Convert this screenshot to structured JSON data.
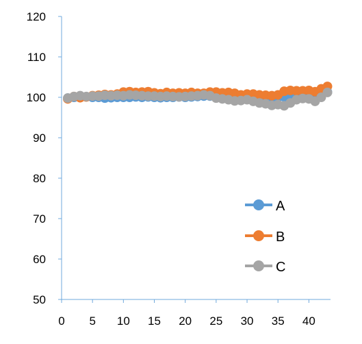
{
  "chart_data": {
    "type": "line",
    "title": "",
    "xlabel": "",
    "ylabel": "",
    "xlim": [
      0,
      43.5
    ],
    "ylim": [
      50,
      120
    ],
    "x_ticks": [
      0,
      5,
      10,
      15,
      20,
      25,
      30,
      35,
      40
    ],
    "y_ticks": [
      50,
      60,
      70,
      80,
      90,
      100,
      110,
      120
    ],
    "legend_position": "right",
    "x": [
      1,
      2,
      3,
      4,
      5,
      6,
      7,
      8,
      9,
      10,
      11,
      12,
      13,
      14,
      15,
      16,
      17,
      18,
      19,
      20,
      21,
      22,
      23,
      24,
      25,
      26,
      27,
      28,
      29,
      30,
      31,
      32,
      33,
      34,
      35,
      36,
      37,
      38,
      39,
      40,
      41,
      42,
      43
    ],
    "series": [
      {
        "name": "A",
        "color": "#5B9BD5",
        "values": [
          99.8,
          100.0,
          100.0,
          100.1,
          100.0,
          100.0,
          99.8,
          99.9,
          100.0,
          100.0,
          100.0,
          100.1,
          100.0,
          100.1,
          100.0,
          99.9,
          100.0,
          100.0,
          100.1,
          100.0,
          100.1,
          100.2,
          100.3,
          100.3,
          100.0,
          100.1,
          100.2,
          100.0,
          99.9,
          100.0,
          99.8,
          99.7,
          99.9,
          100.0,
          100.0,
          100.1,
          100.3,
          100.1,
          100.0,
          100.2,
          100.4,
          101.0,
          101.3
        ]
      },
      {
        "name": "B",
        "color": "#ED7D31",
        "values": [
          99.6,
          100.2,
          99.9,
          100.1,
          100.4,
          100.5,
          100.7,
          100.6,
          100.8,
          101.3,
          101.4,
          101.2,
          101.3,
          101.4,
          101.1,
          100.9,
          101.2,
          101.0,
          101.1,
          101.0,
          101.2,
          101.0,
          101.0,
          101.3,
          101.3,
          101.1,
          101.2,
          101.0,
          100.6,
          100.8,
          100.8,
          100.6,
          100.5,
          100.4,
          100.6,
          101.5,
          101.7,
          101.6,
          101.6,
          101.7,
          101.4,
          102.1,
          102.7
        ]
      },
      {
        "name": "C",
        "color": "#A5A5A5",
        "values": [
          99.8,
          100.2,
          100.4,
          100.2,
          100.3,
          100.3,
          100.5,
          100.4,
          100.5,
          100.4,
          100.6,
          100.5,
          100.4,
          100.3,
          100.3,
          100.2,
          100.3,
          100.2,
          100.1,
          100.2,
          100.3,
          100.4,
          100.6,
          100.4,
          99.8,
          99.6,
          99.4,
          99.1,
          99.2,
          99.4,
          99.0,
          98.6,
          98.4,
          98.0,
          98.2,
          97.9,
          98.6,
          99.4,
          99.7,
          99.6,
          99.0,
          100.0,
          101.2
        ]
      }
    ]
  }
}
